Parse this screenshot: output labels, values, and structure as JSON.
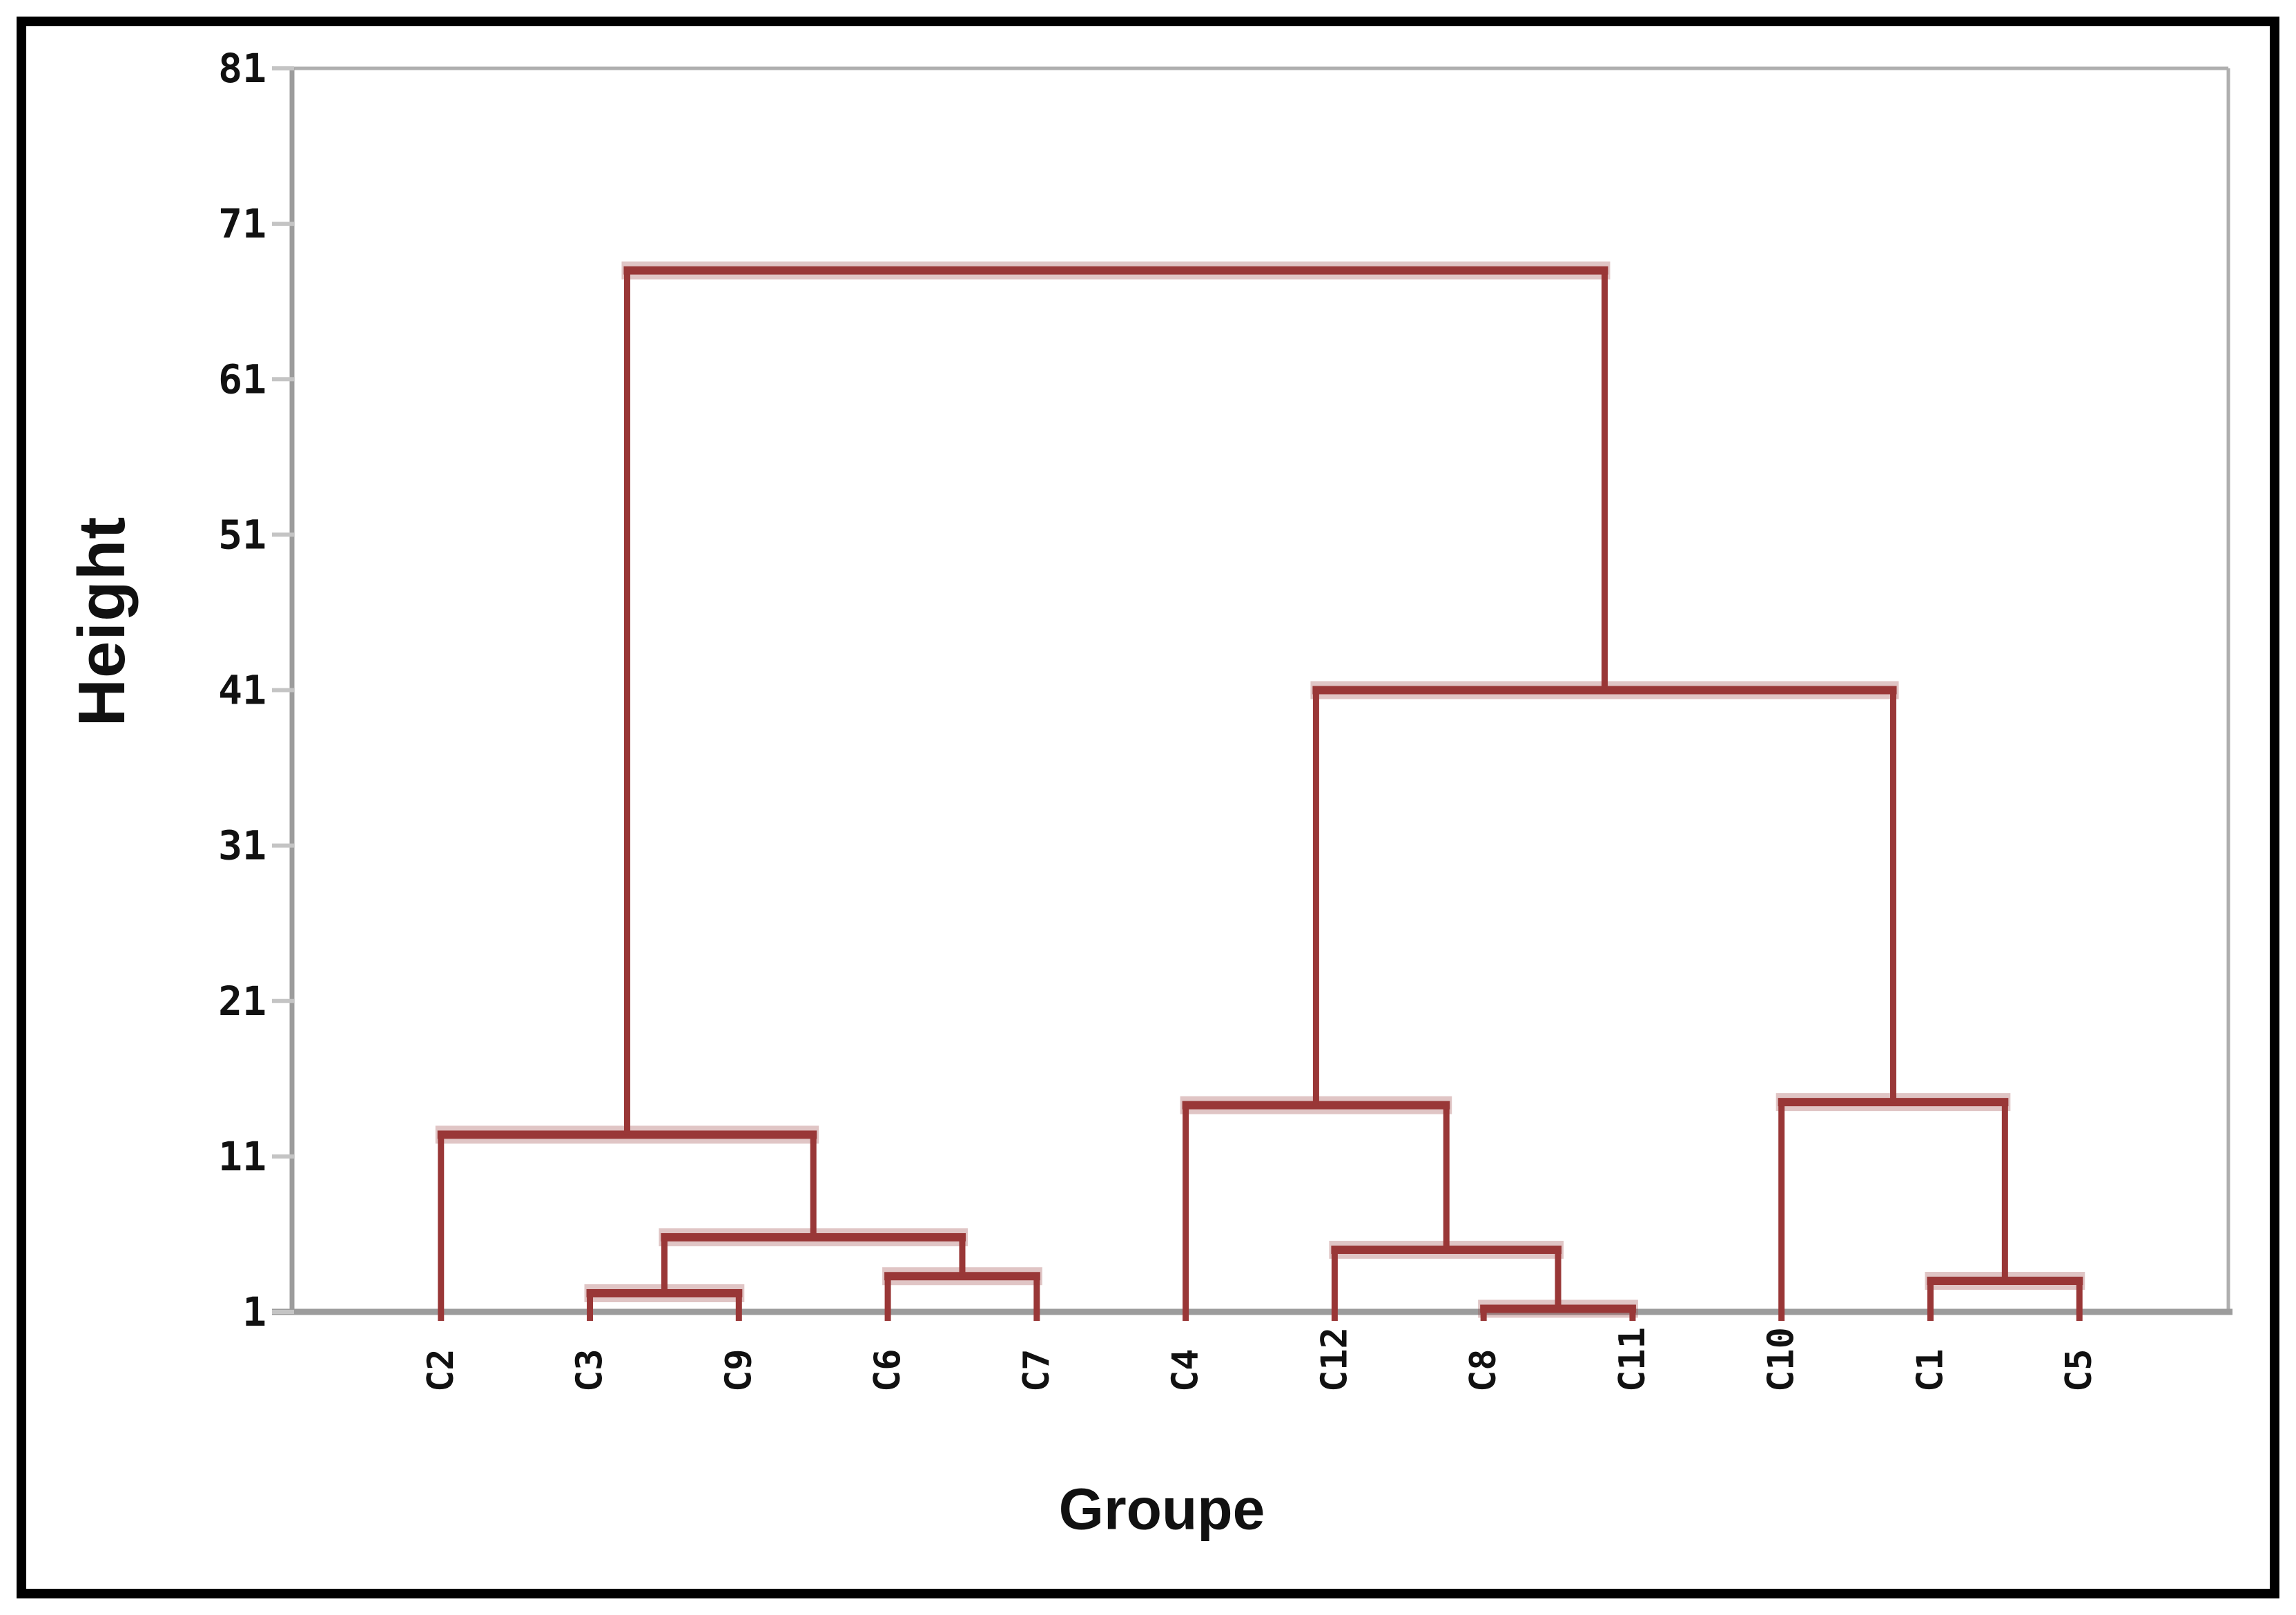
{
  "figure": {
    "frame_color": "#000000",
    "background": "#FFFFFF"
  },
  "chart_data": {
    "type": "dendrogram",
    "title": "",
    "xlabel": "Groupe",
    "ylabel": "Height",
    "ylim": [
      1,
      81
    ],
    "y_ticks": [
      81,
      71,
      61,
      51,
      41,
      31,
      21,
      11,
      1
    ],
    "grid": false,
    "legend": "none",
    "leaves": [
      "C2",
      "C3",
      "C9",
      "C6",
      "C7",
      "C4",
      "C12",
      "C8",
      "C11",
      "C10",
      "C1",
      "C5"
    ],
    "merges": [
      {
        "id": "M1",
        "a": "C3",
        "b": "C9",
        "height": 2.2
      },
      {
        "id": "M2",
        "a": "C6",
        "b": "C7",
        "height": 3.3
      },
      {
        "id": "M3",
        "a": "M1",
        "b": "M2",
        "height": 5.8
      },
      {
        "id": "M4",
        "a": "C2",
        "b": "M3",
        "height": 12.4
      },
      {
        "id": "M5",
        "a": "C8",
        "b": "C11",
        "height": 1.2
      },
      {
        "id": "M6",
        "a": "C12",
        "b": "M5",
        "height": 5.0
      },
      {
        "id": "M7",
        "a": "C4",
        "b": "M6",
        "height": 14.3
      },
      {
        "id": "M8",
        "a": "C1",
        "b": "C5",
        "height": 3.0
      },
      {
        "id": "M9",
        "a": "C10",
        "b": "M8",
        "height": 14.5
      },
      {
        "id": "M10",
        "a": "M7",
        "b": "M9",
        "height": 41.0
      },
      {
        "id": "M11",
        "a": "M4",
        "b": "M10",
        "height": 68.0
      }
    ],
    "colors": {
      "link": "#993737",
      "link_halo": "rgba(153,64,64,0.30)",
      "axis": "#9C9C9C",
      "plot_border": "#AFAFAF",
      "tick": "#C4C4C4",
      "text": "#111111"
    }
  }
}
